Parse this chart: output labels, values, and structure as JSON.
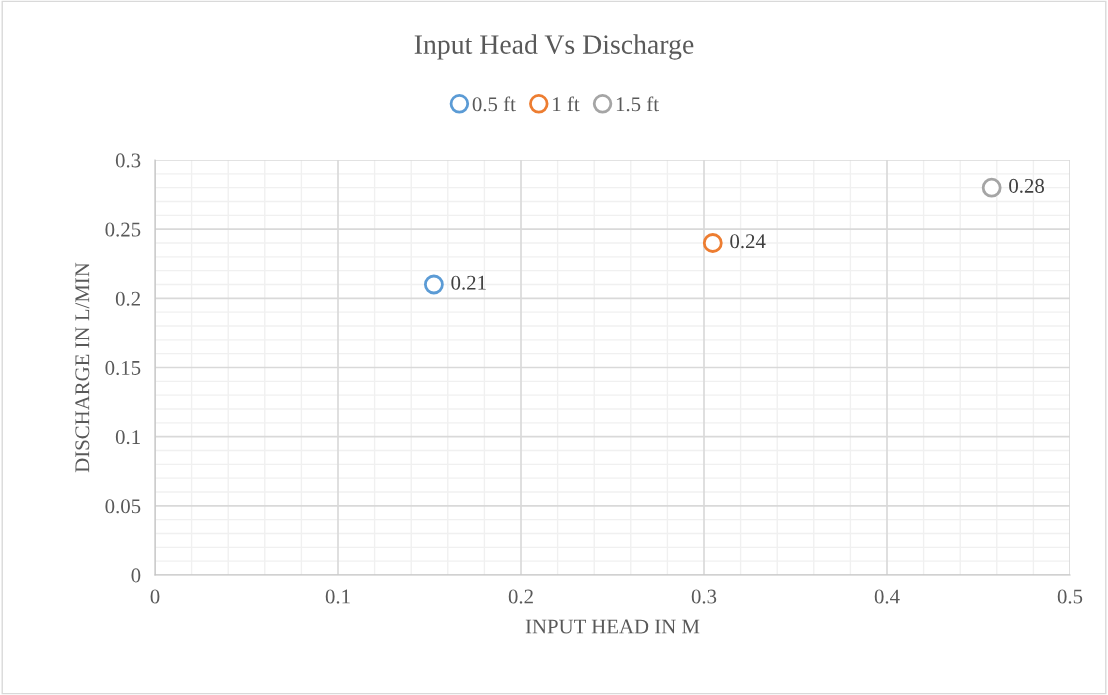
{
  "chart_data": {
    "type": "scatter",
    "title": "Input Head Vs Discharge",
    "xlabel": "INPUT HEAD IN M",
    "ylabel": "DISCHARGE IN L/MIN",
    "series": [
      {
        "name": "0.5 ft",
        "color": "#5b9bd5",
        "x": [
          0.1524
        ],
        "values": [
          0.21
        ]
      },
      {
        "name": "1 ft",
        "color": "#ed7d31",
        "x": [
          0.3048
        ],
        "values": [
          0.24
        ]
      },
      {
        "name": "1.5 ft",
        "color": "#a5a5a5",
        "x": [
          0.4572
        ],
        "values": [
          0.28
        ]
      }
    ],
    "xlim": [
      0,
      0.5
    ],
    "xticks": [
      0,
      0.1,
      0.2,
      0.3,
      0.4,
      0.5
    ],
    "ylim": [
      0,
      0.3
    ],
    "yticks": [
      0,
      0.05,
      0.1,
      0.15,
      0.2,
      0.25,
      0.3
    ],
    "grid": true,
    "legend": "top",
    "marker": "circle",
    "data_labels": true
  }
}
